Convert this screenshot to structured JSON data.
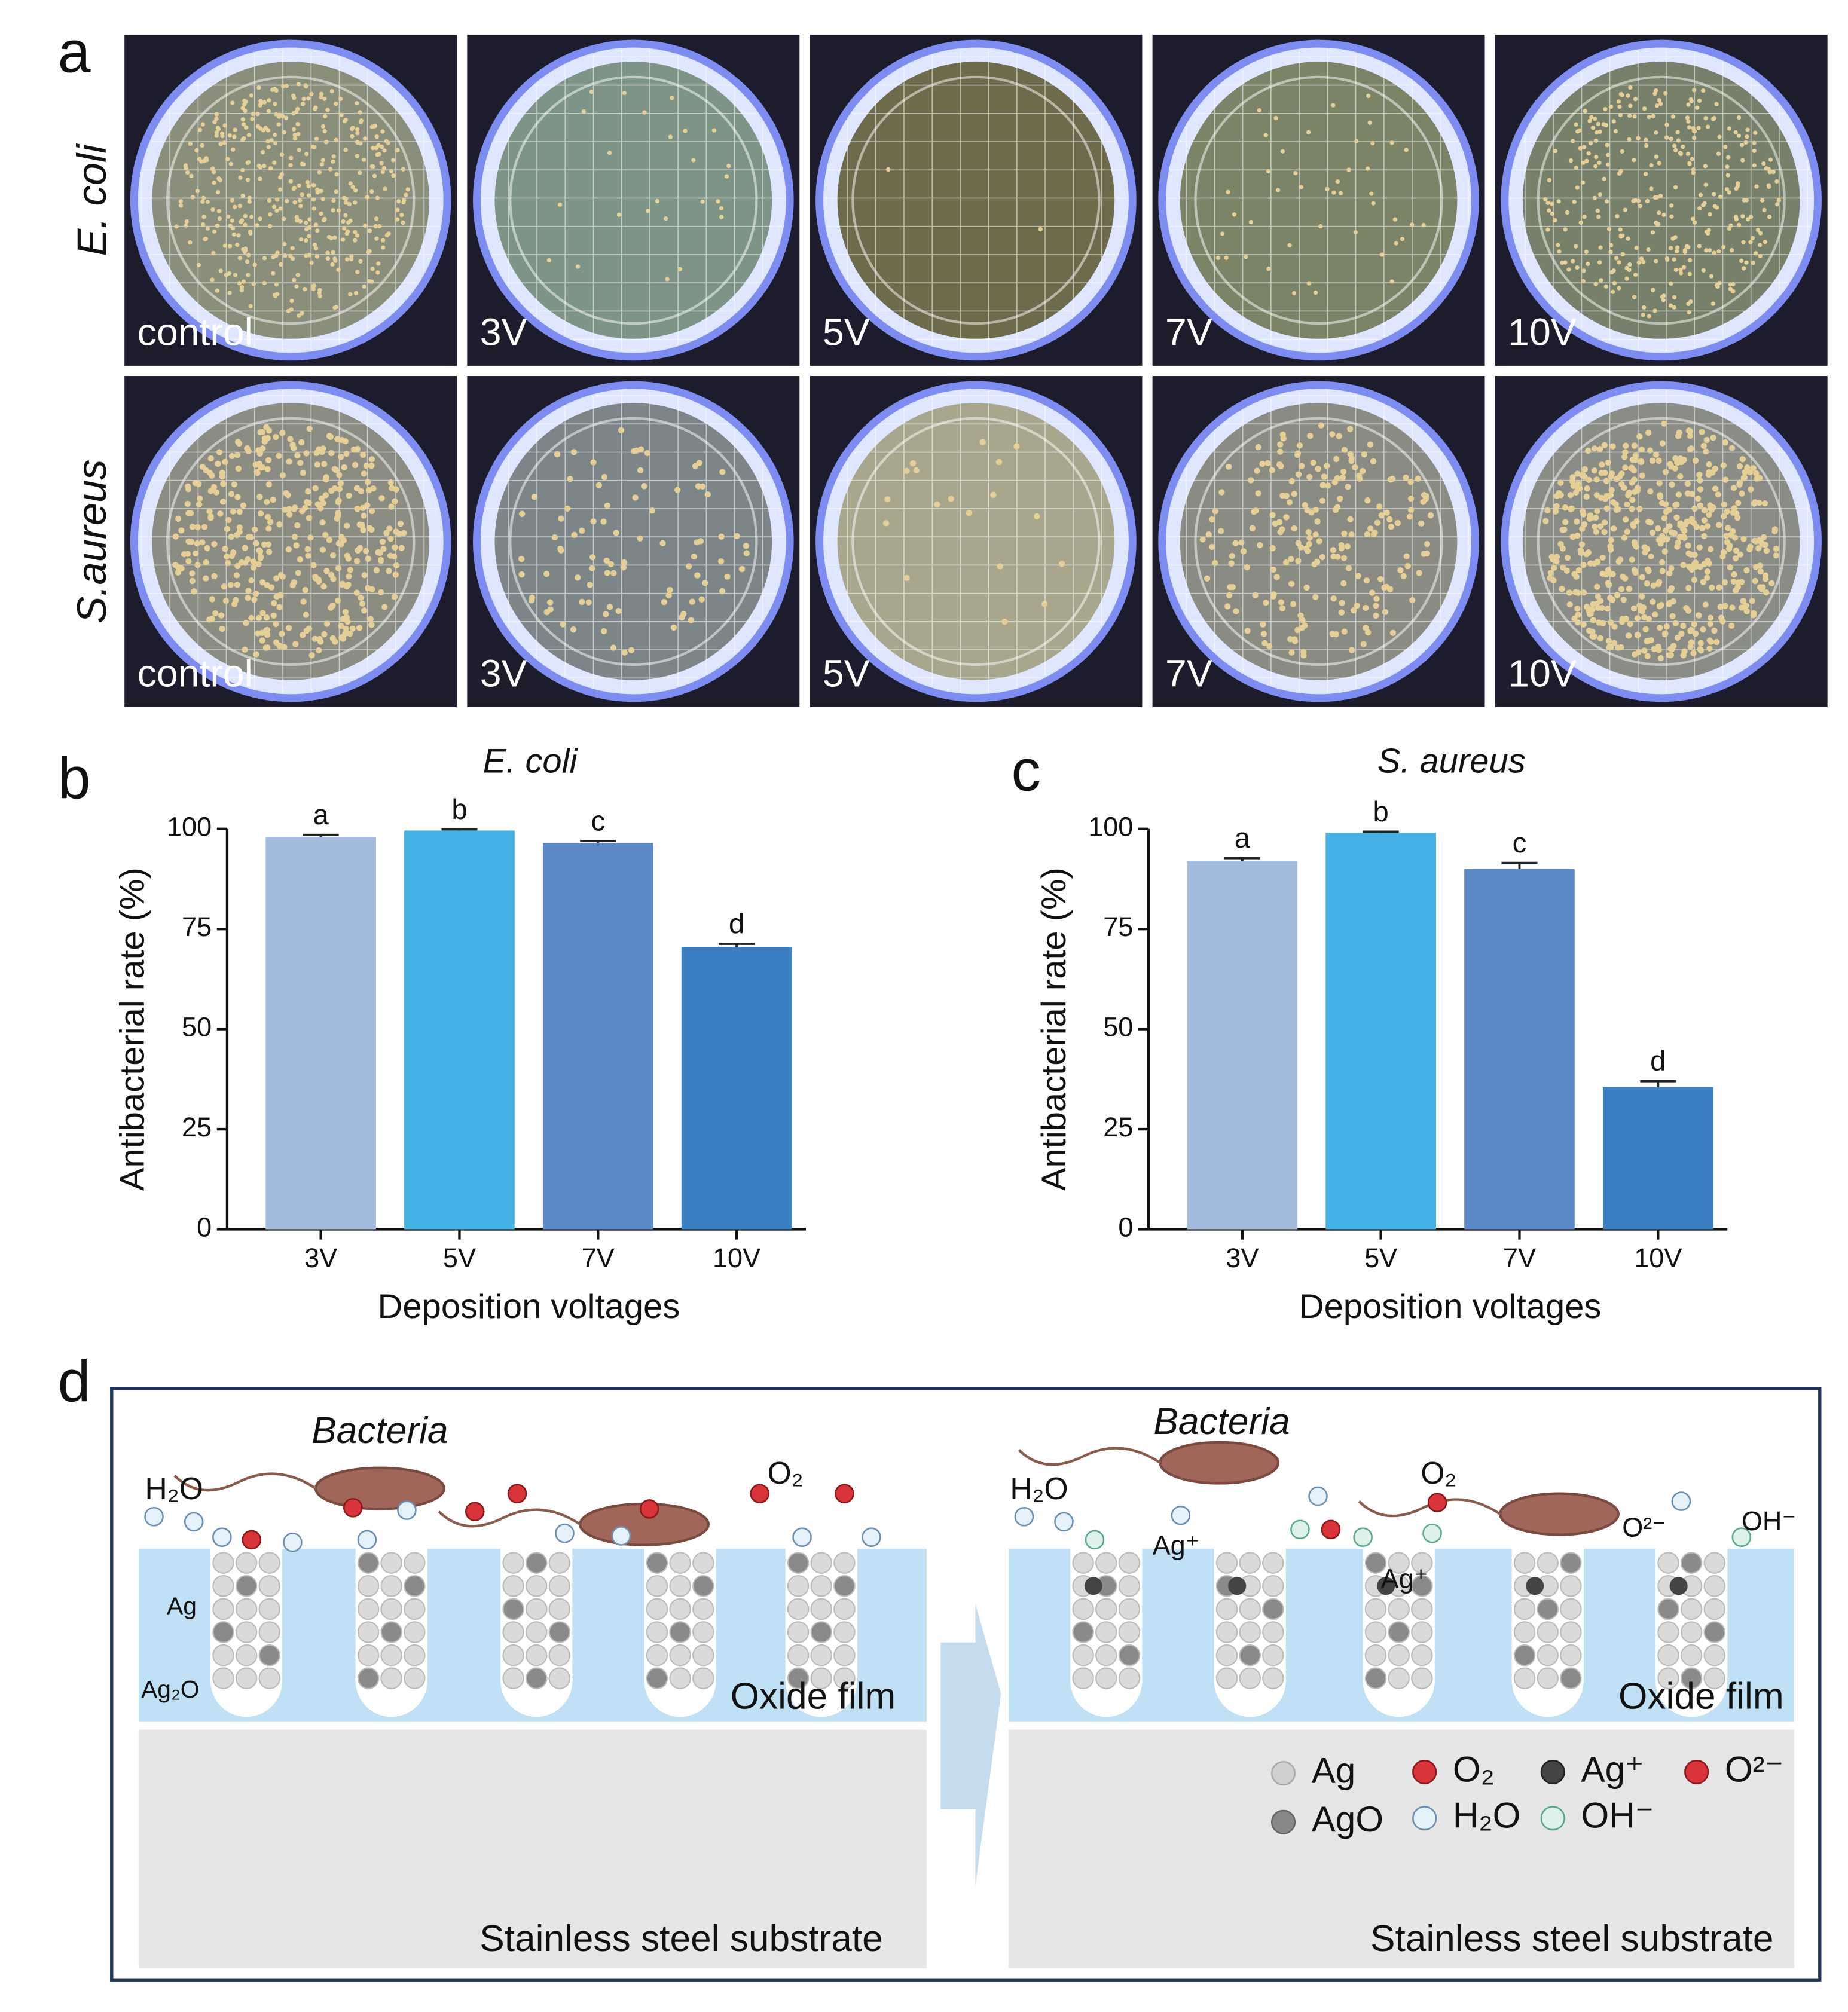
{
  "panel_labels": [
    "a",
    "b",
    "c",
    "d"
  ],
  "photos": {
    "rows": [
      "E. coli",
      "S.aureus"
    ],
    "labels": [
      "control",
      "3V",
      "5V",
      "7V",
      "10V"
    ]
  },
  "chart_data": [
    {
      "type": "bar",
      "title": "E. coli",
      "categories": [
        "3V",
        "5V",
        "7V",
        "10V"
      ],
      "values": [
        98,
        99.6,
        96.5,
        70.5
      ],
      "errors": [
        0.5,
        0.3,
        0.5,
        0.8
      ],
      "annotations": [
        "a",
        "b",
        "c",
        "d"
      ],
      "colors": [
        "#a3bbdc",
        "#42b0e2",
        "#5b88c6",
        "#3a80c3"
      ],
      "xlabel": "Deposition voltages",
      "ylabel": "Antibacterial rate (%)",
      "ylim": [
        0,
        100
      ],
      "yticks": [
        0,
        25,
        50,
        75,
        100
      ]
    },
    {
      "type": "bar",
      "title": "S. aureus",
      "categories": [
        "3V",
        "5V",
        "7V",
        "10V"
      ],
      "values": [
        92,
        99,
        90,
        35.5
      ],
      "errors": [
        0.7,
        0.3,
        1.5,
        1.5
      ],
      "annotations": [
        "a",
        "b",
        "c",
        "d"
      ],
      "colors": [
        "#a3bbdc",
        "#42b0e2",
        "#5b88c6",
        "#3a80c3"
      ],
      "xlabel": "Deposition voltages",
      "ylabel": "Antibacterial rate (%)",
      "ylim": [
        0,
        100
      ],
      "yticks": [
        0,
        25,
        50,
        75,
        100
      ]
    }
  ],
  "diagram": {
    "left": {
      "bacteria": "Bacteria",
      "water": "H₂O",
      "oxygen": "O₂",
      "silver": "Ag",
      "silver_oxide": "Ag₂O",
      "film": "Oxide film",
      "substrate": "Stainless steel substrate"
    },
    "right": {
      "bacteria": "Bacteria",
      "water": "H₂O",
      "oxygen": "O₂",
      "ion_1": "Ag⁺",
      "ion_2": "Ag⁺",
      "superoxide": "O²⁻",
      "hydroxide": "OH⁻",
      "film": "Oxide film",
      "substrate": "Stainless steel substrate"
    },
    "legend": [
      "Ag",
      "O₂",
      "Ag⁺",
      "O²⁻",
      "AgO",
      "H₂O",
      "OH⁻"
    ]
  }
}
